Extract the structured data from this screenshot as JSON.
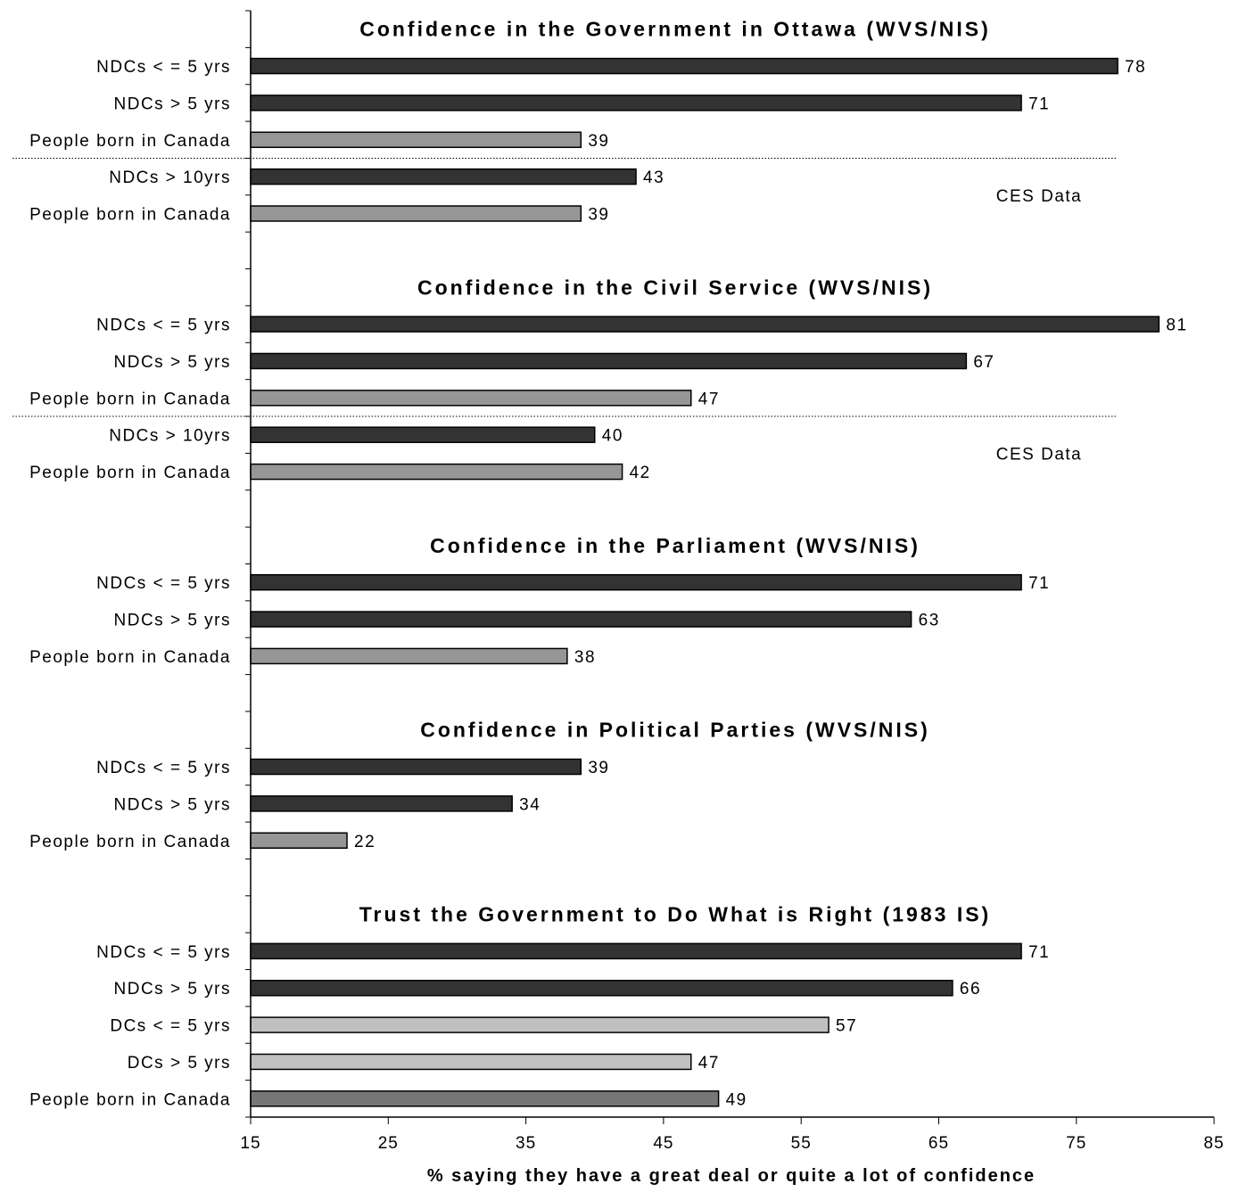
{
  "chart_data": {
    "type": "bar",
    "orientation": "horizontal",
    "xlabel": "% saying they have a great deal or quite a lot of confidence",
    "xlim": [
      15,
      85
    ],
    "xticks": [
      15,
      25,
      35,
      45,
      55,
      65,
      75,
      85
    ],
    "colors": {
      "ndc": "#333333",
      "born": "#969696",
      "dc": "#c0c0c0",
      "born_is": "#777777"
    },
    "panels": [
      {
        "title": "Confidence in the Government in Ottawa (WVS/NIS)",
        "bars": [
          {
            "label": "NDCs < = 5 yrs",
            "value": 78,
            "color_key": "ndc"
          },
          {
            "label": "NDCs > 5 yrs",
            "value": 71,
            "color_key": "ndc"
          },
          {
            "label": "People born in Canada",
            "value": 39,
            "color_key": "born"
          },
          {
            "label": "NDCs > 10yrs",
            "value": 43,
            "color_key": "ndc"
          },
          {
            "label": "People born in Canada",
            "value": 39,
            "color_key": "born"
          }
        ],
        "separator_after": 3,
        "note": "CES Data"
      },
      {
        "title": "Confidence in the Civil Service (WVS/NIS)",
        "bars": [
          {
            "label": "NDCs < = 5 yrs",
            "value": 81,
            "color_key": "ndc"
          },
          {
            "label": "NDCs > 5 yrs",
            "value": 67,
            "color_key": "ndc"
          },
          {
            "label": "People born in Canada",
            "value": 47,
            "color_key": "born"
          },
          {
            "label": "NDCs > 10yrs",
            "value": 40,
            "color_key": "ndc"
          },
          {
            "label": "People born in Canada",
            "value": 42,
            "color_key": "born"
          }
        ],
        "separator_after": 3,
        "note": "CES Data"
      },
      {
        "title": "Confidence in the Parliament (WVS/NIS)",
        "bars": [
          {
            "label": "NDCs < = 5 yrs",
            "value": 71,
            "color_key": "ndc"
          },
          {
            "label": "NDCs > 5 yrs",
            "value": 63,
            "color_key": "ndc"
          },
          {
            "label": "People born in Canada",
            "value": 38,
            "color_key": "born"
          }
        ]
      },
      {
        "title": "Confidence in Political Parties (WVS/NIS)",
        "bars": [
          {
            "label": "NDCs < = 5 yrs",
            "value": 39,
            "color_key": "ndc"
          },
          {
            "label": "NDCs > 5 yrs",
            "value": 34,
            "color_key": "ndc"
          },
          {
            "label": "People born in Canada",
            "value": 22,
            "color_key": "born"
          }
        ]
      },
      {
        "title": "Trust the Government to Do What is Right (1983 IS)",
        "bars": [
          {
            "label": "NDCs < = 5 yrs",
            "value": 71,
            "color_key": "ndc"
          },
          {
            "label": "NDCs > 5 yrs",
            "value": 66,
            "color_key": "ndc"
          },
          {
            "label": "DCs < = 5 yrs",
            "value": 57,
            "color_key": "dc"
          },
          {
            "label": "DCs > 5 yrs",
            "value": 47,
            "color_key": "dc"
          },
          {
            "label": "People born in Canada",
            "value": 49,
            "color_key": "born_is"
          }
        ]
      }
    ]
  }
}
